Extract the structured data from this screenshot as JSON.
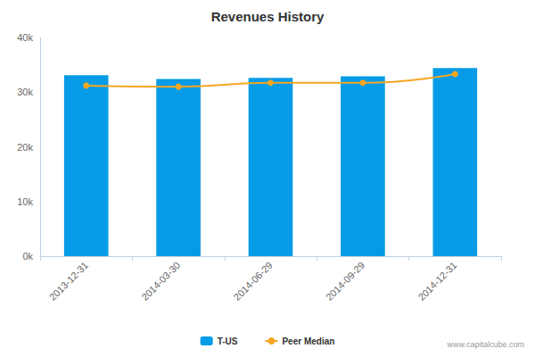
{
  "chart_data": {
    "type": "bar",
    "title": "Revenues History",
    "categories": [
      "2013-12-31",
      "2014-03-30",
      "2014-06-29",
      "2014-09-29",
      "2014-12-31"
    ],
    "series": [
      {
        "name": "T-US",
        "type": "bar",
        "color": "#069be6",
        "values": [
          33100,
          32400,
          32600,
          32900,
          34400
        ]
      },
      {
        "name": "Peer Median",
        "type": "line",
        "color": "#f5a623",
        "marker": "circle",
        "values": [
          31200,
          31000,
          31700,
          31700,
          33300
        ]
      }
    ],
    "ylim": [
      0,
      40000
    ],
    "yticks": [
      {
        "value": 0,
        "label": "0k"
      },
      {
        "value": 10000,
        "label": "10k"
      },
      {
        "value": 20000,
        "label": "20k"
      },
      {
        "value": 30000,
        "label": "30k"
      },
      {
        "value": 40000,
        "label": "40k"
      }
    ],
    "grid": false,
    "legend": "bottom",
    "source": "www.capitalcube.com"
  }
}
